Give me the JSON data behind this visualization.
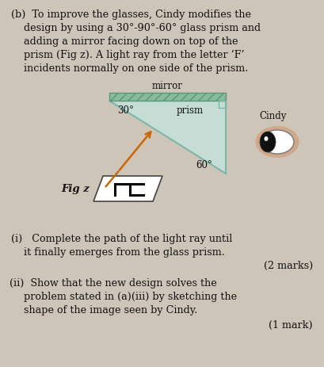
{
  "bg_color": "#ccc5b8",
  "text_color": "#111111",
  "prism_color": "#c5ddd5",
  "prism_edge": "#7ab8a8",
  "mirror_color": "#88bb99",
  "mirror_edge": "#559977",
  "arrow_color": "#cc6600",
  "fig_label": "Fig z",
  "mirror_label": "mirror",
  "prism_label": "prism",
  "cindy_label": "Cindy",
  "angle_30": "30°",
  "angle_60": "60°",
  "line1": "(b)  To improve the glasses, Cindy modifies the",
  "line2": "design by using a 30°-90°-60° glass prism and",
  "line3": "adding a mirror facing down on top of the",
  "line4": "prism (Fig z). A light ray from the letter ‘F’",
  "line5": "incidents normally on one side of the prism.",
  "pi_text": "(i)   Complete the path of the light ray until",
  "pii_text": "it finally emerges from the glass prism.",
  "pii_marks": "(2 marks)",
  "piii_text": "(ii)  Show that the new design solves the",
  "piii2_text": "problem stated in (a)(iii) by sketching the",
  "piii3_text": "shape of the image seen by Cindy.",
  "piii_marks": "(1 mark)"
}
